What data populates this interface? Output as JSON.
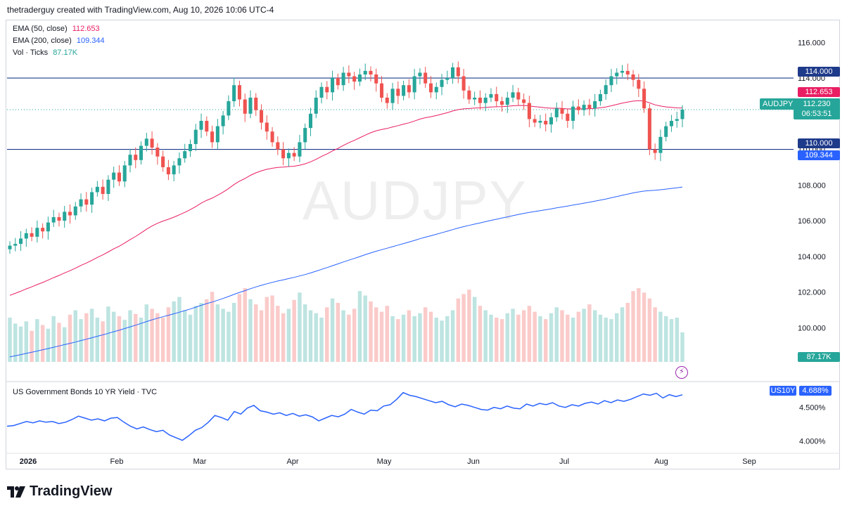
{
  "header": {
    "text": "thetraderguy created with TradingView.com, Aug 10, 2026 10:06 UTC-4"
  },
  "legend": {
    "ema50_label": "EMA (50, close)",
    "ema50_value": "112.653",
    "ema200_label": "EMA (200, close)",
    "ema200_value": "109.344",
    "vol_label": "Vol · Ticks",
    "vol_value": "87.17K"
  },
  "watermark": "AUDJPY",
  "symbol_tag": "AUDJPY",
  "price_tag": {
    "price": "112.230",
    "countdown": "06:53:51"
  },
  "price_axis_tags": {
    "level_high": "114.000",
    "ema50": "112.653",
    "level_low": "110.000",
    "ema200": "109.344",
    "volume": "87.17K"
  },
  "indicator": {
    "title": "US Government Bonds 10 YR Yield · TVC",
    "tag_symbol": "US10Y",
    "tag_value": "4.688%"
  },
  "colors": {
    "up": "#26a69a",
    "down": "#ef5350",
    "ema50": "#e91e63",
    "ema200": "#2962ff",
    "level": "#1e3a8a",
    "yield": "#2962ff"
  },
  "logo": {
    "text": "TradingView",
    "icon": "tradingview-logo-icon"
  },
  "chart_data": [
    {
      "type": "candlestick",
      "title": "AUDJPY",
      "x_axis_labels": [
        "2026",
        "Feb",
        "Mar",
        "Apr",
        "May",
        "Jun",
        "Jul",
        "Aug",
        "Sep"
      ],
      "y_ticks": [
        100,
        102,
        104,
        106,
        108,
        110,
        112,
        114,
        116
      ],
      "y_tick_labels": [
        "100.000",
        "102.000",
        "104.000",
        "106.000",
        "108.000",
        "110.000",
        "112.000",
        "114.000",
        "116.000"
      ],
      "ylim": [
        98.2,
        116.8
      ],
      "horizontal_levels": [
        114.0,
        110.0
      ],
      "last_price": 112.23,
      "close": [
        104.6,
        104.7,
        105.0,
        105.3,
        105.1,
        105.6,
        105.4,
        105.9,
        106.2,
        106.0,
        106.5,
        106.3,
        106.8,
        107.2,
        106.9,
        107.6,
        107.9,
        107.5,
        108.3,
        108.7,
        108.2,
        109.1,
        109.7,
        109.4,
        110.2,
        110.6,
        110.1,
        109.6,
        109.0,
        108.6,
        109.1,
        109.5,
        109.9,
        110.3,
        111.1,
        111.6,
        111.0,
        110.4,
        111.3,
        111.9,
        112.7,
        113.6,
        112.8,
        112.0,
        112.9,
        112.2,
        111.5,
        111.0,
        110.4,
        110.0,
        109.5,
        109.8,
        109.6,
        110.4,
        111.2,
        112.0,
        112.9,
        113.5,
        113.2,
        114.0,
        113.6,
        114.3,
        114.1,
        113.8,
        114.2,
        114.4,
        114.2,
        113.7,
        112.9,
        112.6,
        113.4,
        113.0,
        113.6,
        113.2,
        114.1,
        114.3,
        113.7,
        113.2,
        113.5,
        113.9,
        114.0,
        114.6,
        114.1,
        113.3,
        112.8,
        112.9,
        112.6,
        112.9,
        113.1,
        112.7,
        112.5,
        112.9,
        113.2,
        112.8,
        112.6,
        111.7,
        111.5,
        111.6,
        111.4,
        111.8,
        112.3,
        112.0,
        111.6,
        112.4,
        112.2,
        112.5,
        112.3,
        112.7,
        113.1,
        113.6,
        114.1,
        114.3,
        114.4,
        114.2,
        113.9,
        113.4,
        112.3,
        110.0,
        109.8,
        110.7,
        111.3,
        111.6,
        111.7,
        112.23
      ],
      "series": [
        {
          "name": "EMA (50, close)",
          "start": 101.7,
          "end": 112.653
        },
        {
          "name": "EMA (200, close)",
          "start": 98.3,
          "end": 109.344
        }
      ]
    },
    {
      "type": "bar",
      "title": "Vol · Ticks",
      "last_value": "87.17K",
      "values": [
        60,
        52,
        48,
        55,
        42,
        58,
        50,
        45,
        62,
        53,
        47,
        64,
        70,
        58,
        66,
        72,
        60,
        55,
        75,
        68,
        62,
        57,
        70,
        65,
        60,
        78,
        72,
        66,
        60,
        74,
        82,
        88,
        70,
        64,
        76,
        80,
        85,
        95,
        78,
        72,
        68,
        80,
        92,
        100,
        85,
        78,
        70,
        88,
        90,
        76,
        66,
        72,
        84,
        94,
        78,
        70,
        66,
        60,
        74,
        86,
        80,
        70,
        64,
        72,
        96,
        90,
        82,
        74,
        68,
        76,
        62,
        58,
        64,
        70,
        62,
        66,
        74,
        68,
        60,
        56,
        62,
        70,
        86,
        92,
        98,
        88,
        76,
        70,
        64,
        60,
        58,
        66,
        72,
        64,
        70,
        76,
        68,
        62,
        58,
        66,
        74,
        70,
        64,
        60,
        68,
        72,
        78,
        70,
        64,
        60,
        58,
        66,
        74,
        80,
        96,
        100,
        94,
        86,
        74,
        68,
        62,
        58,
        60,
        40
      ],
      "colors_up_down": "close change"
    },
    {
      "type": "line",
      "title": "US Government Bonds 10 YR Yield · TVC",
      "y_tick_labels": [
        "4.000%",
        "4.500%"
      ],
      "ylim": [
        3.87,
        4.79
      ],
      "last_value": 4.688,
      "values": [
        4.22,
        4.23,
        4.26,
        4.29,
        4.27,
        4.3,
        4.28,
        4.29,
        4.26,
        4.28,
        4.32,
        4.37,
        4.34,
        4.31,
        4.33,
        4.3,
        4.34,
        4.35,
        4.28,
        4.22,
        4.18,
        4.21,
        4.17,
        4.14,
        4.16,
        4.09,
        4.05,
        4.01,
        4.08,
        4.16,
        4.2,
        4.28,
        4.38,
        4.35,
        4.31,
        4.44,
        4.4,
        4.49,
        4.53,
        4.45,
        4.43,
        4.4,
        4.42,
        4.38,
        4.41,
        4.37,
        4.39,
        4.36,
        4.3,
        4.34,
        4.38,
        4.36,
        4.4,
        4.47,
        4.43,
        4.4,
        4.46,
        4.45,
        4.52,
        4.54,
        4.62,
        4.72,
        4.68,
        4.66,
        4.63,
        4.6,
        4.57,
        4.59,
        4.54,
        4.51,
        4.55,
        4.53,
        4.5,
        4.47,
        4.46,
        4.5,
        4.48,
        4.52,
        4.49,
        4.48,
        4.55,
        4.52,
        4.56,
        4.54,
        4.57,
        4.52,
        4.5,
        4.54,
        4.52,
        4.56,
        4.58,
        4.55,
        4.6,
        4.57,
        4.61,
        4.59,
        4.62,
        4.66,
        4.7,
        4.68,
        4.71,
        4.64,
        4.69,
        4.66,
        4.688
      ]
    }
  ]
}
